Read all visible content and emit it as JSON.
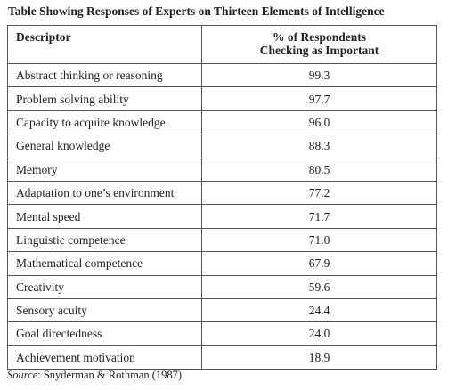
{
  "chart_data": {
    "type": "table",
    "title": "Table Showing Responses of Experts on Thirteen Elements of Intelligence",
    "columns": [
      "Descriptor",
      "% of Respondents Checking as Important"
    ],
    "column_header_lines": [
      "Descriptor",
      "% of Respondents",
      "Checking as Important"
    ],
    "rows": [
      {
        "descriptor": "Abstract thinking or reasoning",
        "value": "99.3"
      },
      {
        "descriptor": "Problem solving ability",
        "value": "97.7"
      },
      {
        "descriptor": "Capacity to acquire knowledge",
        "value": "96.0"
      },
      {
        "descriptor": "General knowledge",
        "value": "88.3"
      },
      {
        "descriptor": "Memory",
        "value": "80.5"
      },
      {
        "descriptor": "Adaptation to one’s environment",
        "value": "77.2"
      },
      {
        "descriptor": "Mental speed",
        "value": "71.7"
      },
      {
        "descriptor": "Linguistic competence",
        "value": "71.0"
      },
      {
        "descriptor": "Mathematical competence",
        "value": "67.9"
      },
      {
        "descriptor": "Creativity",
        "value": "59.6"
      },
      {
        "descriptor": "Sensory acuity",
        "value": "24.4"
      },
      {
        "descriptor": "Goal directedness",
        "value": "24.0"
      },
      {
        "descriptor": "Achievement motivation",
        "value": "18.9"
      }
    ],
    "categories": [
      "Abstract thinking or reasoning",
      "Problem solving ability",
      "Capacity to acquire knowledge",
      "General knowledge",
      "Memory",
      "Adaptation to one’s environment",
      "Mental speed",
      "Linguistic competence",
      "Mathematical competence",
      "Creativity",
      "Sensory acuity",
      "Goal directedness",
      "Achievement motivation"
    ],
    "values": [
      99.3,
      97.7,
      96.0,
      88.3,
      80.5,
      77.2,
      71.7,
      71.0,
      67.9,
      59.6,
      24.4,
      24.0,
      18.9
    ],
    "source_label": "Source",
    "source_text": ": Snyderman & Rothman (1987)"
  }
}
